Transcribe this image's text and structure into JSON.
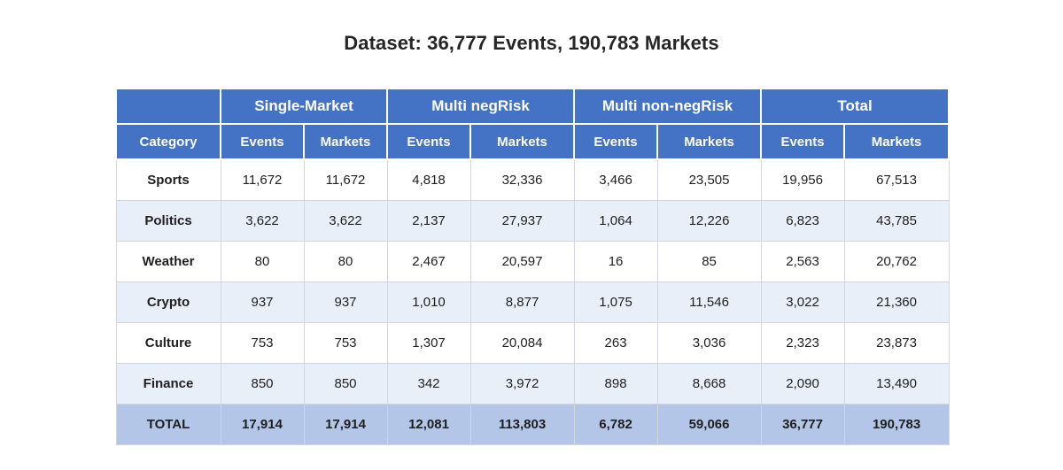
{
  "chart_data": {
    "type": "table",
    "title": "Dataset: 36,777 Events, 190,783 Markets",
    "column_groups": [
      "Single-Market",
      "Multi negRisk",
      "Multi non-negRisk",
      "Total"
    ],
    "columns": [
      "Category",
      "Events",
      "Markets",
      "Events",
      "Markets",
      "Events",
      "Markets",
      "Events",
      "Markets"
    ],
    "rows": [
      [
        "Sports",
        "11,672",
        "11,672",
        "4,818",
        "32,336",
        "3,466",
        "23,505",
        "19,956",
        "67,513"
      ],
      [
        "Politics",
        "3,622",
        "3,622",
        "2,137",
        "27,937",
        "1,064",
        "12,226",
        "6,823",
        "43,785"
      ],
      [
        "Weather",
        "80",
        "80",
        "2,467",
        "20,597",
        "16",
        "85",
        "2,563",
        "20,762"
      ],
      [
        "Crypto",
        "937",
        "937",
        "1,010",
        "8,877",
        "1,075",
        "11,546",
        "3,022",
        "21,360"
      ],
      [
        "Culture",
        "753",
        "753",
        "1,307",
        "20,084",
        "263",
        "3,036",
        "2,323",
        "23,873"
      ],
      [
        "Finance",
        "850",
        "850",
        "342",
        "3,972",
        "898",
        "8,668",
        "2,090",
        "13,490"
      ]
    ],
    "total_row": [
      "TOTAL",
      "17,914",
      "17,914",
      "12,081",
      "113,803",
      "6,782",
      "59,066",
      "36,777",
      "190,783"
    ]
  },
  "colors": {
    "header_bg": "#4472c4",
    "header_text": "#ffffff",
    "row_alt_bg": "#e9eff8",
    "total_bg": "#b3c6e7"
  }
}
